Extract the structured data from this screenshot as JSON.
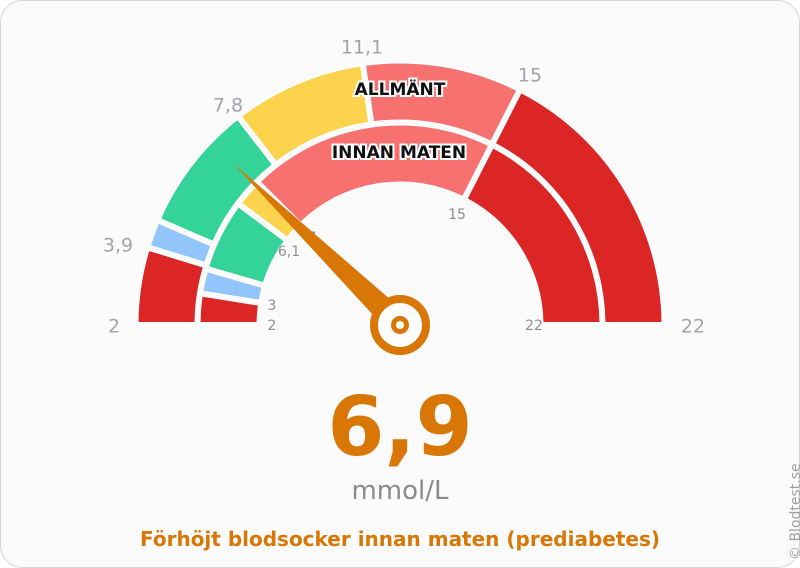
{
  "chart_data": {
    "type": "gauge",
    "value": 6.9,
    "unit": "mmol/L",
    "status": "Förhöjt blodsocker innan maten (prediabetes)",
    "min": 2,
    "max": 22,
    "rings": [
      {
        "name": "ALLMÄNT",
        "bands": [
          {
            "from": 2,
            "to": 3.9,
            "color": "#dc2626"
          },
          {
            "from": 3.9,
            "to": 4.6,
            "color": "#93c5fd"
          },
          {
            "from": 4.6,
            "to": 7.8,
            "color": "#34d399"
          },
          {
            "from": 7.8,
            "to": 11.1,
            "color": "#fcd34d"
          },
          {
            "from": 11.1,
            "to": 15,
            "color": "#f87171"
          },
          {
            "from": 15,
            "to": 22,
            "color": "#dc2626"
          }
        ],
        "ticks": [
          "2",
          "3,9",
          "7,8",
          "11,1",
          "15",
          "22"
        ]
      },
      {
        "name": "INNAN MATEN",
        "bands": [
          {
            "from": 2,
            "to": 3,
            "color": "#dc2626"
          },
          {
            "from": 3,
            "to": 3.8,
            "color": "#93c5fd"
          },
          {
            "from": 3.8,
            "to": 6.1,
            "color": "#34d399"
          },
          {
            "from": 6.1,
            "to": 7,
            "color": "#fcd34d"
          },
          {
            "from": 7,
            "to": 15,
            "color": "#f87171"
          },
          {
            "from": 15,
            "to": 22,
            "color": "#dc2626"
          }
        ],
        "ticks": [
          "2",
          "3",
          "6,1",
          "7",
          "15",
          "22"
        ]
      }
    ],
    "needle_color": "#d97706"
  },
  "display": {
    "value_text": "6,9",
    "unit_text": "mmol/L",
    "status_text": "Förhöjt blodsocker innan maten (prediabetes)",
    "copyright": "© Blodtest.se"
  }
}
